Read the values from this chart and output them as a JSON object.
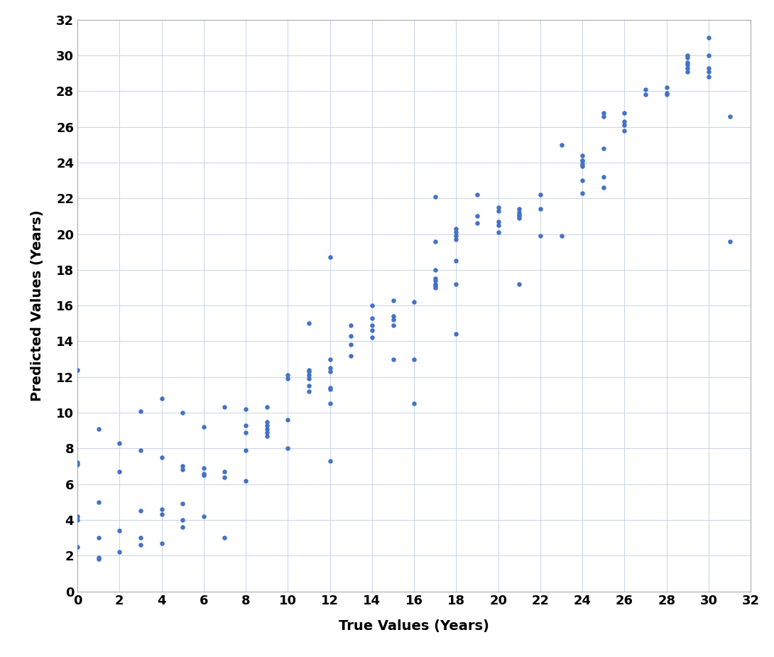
{
  "title": "",
  "xlabel": "True Values (Years)",
  "ylabel": "Predicted Values (Years)",
  "xlim": [
    0,
    32
  ],
  "ylim": [
    0,
    32
  ],
  "xticks": [
    0,
    2,
    4,
    6,
    8,
    10,
    12,
    14,
    16,
    18,
    20,
    22,
    24,
    26,
    28,
    30,
    32
  ],
  "yticks": [
    0,
    2,
    4,
    6,
    8,
    10,
    12,
    14,
    16,
    18,
    20,
    22,
    24,
    26,
    28,
    30,
    32
  ],
  "dot_color": "#4472C4",
  "dot_size": 22,
  "background_color": "#ffffff",
  "grid_color": "#c8d4e8",
  "x": [
    0,
    0,
    0,
    0,
    0,
    0,
    1,
    1,
    1,
    1,
    1,
    2,
    2,
    2,
    2,
    3,
    3,
    3,
    3,
    3,
    4,
    4,
    4,
    4,
    4,
    5,
    5,
    5,
    5,
    5,
    5,
    6,
    6,
    6,
    6,
    6,
    7,
    7,
    7,
    7,
    8,
    8,
    8,
    8,
    8,
    9,
    9,
    9,
    9,
    9,
    9,
    10,
    10,
    10,
    10,
    11,
    11,
    11,
    11,
    11,
    11,
    11,
    12,
    12,
    12,
    12,
    12,
    12,
    12,
    12,
    13,
    13,
    13,
    13,
    14,
    14,
    14,
    14,
    14,
    15,
    15,
    15,
    15,
    15,
    16,
    16,
    16,
    17,
    17,
    17,
    17,
    17,
    17,
    17,
    17,
    18,
    18,
    18,
    18,
    18,
    18,
    18,
    19,
    19,
    19,
    20,
    20,
    20,
    20,
    20,
    21,
    21,
    21,
    21,
    21,
    21,
    22,
    22,
    22,
    23,
    23,
    24,
    24,
    24,
    24,
    24,
    24,
    24,
    25,
    25,
    25,
    25,
    25,
    26,
    26,
    26,
    26,
    27,
    27,
    28,
    28,
    28,
    29,
    29,
    29,
    29,
    29,
    29,
    30,
    30,
    30,
    30,
    30,
    31,
    31
  ],
  "y": [
    2.5,
    4.0,
    4.2,
    7.1,
    7.2,
    12.4,
    1.8,
    1.9,
    3.0,
    5.0,
    9.1,
    2.2,
    3.4,
    6.7,
    8.3,
    2.6,
    3.0,
    4.5,
    7.9,
    10.1,
    2.7,
    4.3,
    4.6,
    7.5,
    10.8,
    3.6,
    4.0,
    4.9,
    6.8,
    7.0,
    10.0,
    4.2,
    6.5,
    6.6,
    6.9,
    9.2,
    3.0,
    6.4,
    6.7,
    10.3,
    6.2,
    7.9,
    8.9,
    9.3,
    10.2,
    8.7,
    8.9,
    9.1,
    9.3,
    9.5,
    10.3,
    8.0,
    9.6,
    11.9,
    12.1,
    11.2,
    11.5,
    11.9,
    12.1,
    12.3,
    12.4,
    15.0,
    7.3,
    10.5,
    11.3,
    11.4,
    12.3,
    12.5,
    13.0,
    18.7,
    13.2,
    13.8,
    14.3,
    14.9,
    14.2,
    14.6,
    14.9,
    15.3,
    16.0,
    13.0,
    14.9,
    15.2,
    15.4,
    16.3,
    10.5,
    13.0,
    16.2,
    17.0,
    17.1,
    17.2,
    17.4,
    17.5,
    18.0,
    19.6,
    22.1,
    14.4,
    17.2,
    18.5,
    19.7,
    19.9,
    20.1,
    20.3,
    20.6,
    21.0,
    22.2,
    20.1,
    20.5,
    20.7,
    21.3,
    21.5,
    17.2,
    20.9,
    21.0,
    21.1,
    21.2,
    21.4,
    19.9,
    21.4,
    22.2,
    19.9,
    25.0,
    22.3,
    23.0,
    23.8,
    23.9,
    24.1,
    24.1,
    24.4,
    22.6,
    23.2,
    24.8,
    26.6,
    26.8,
    25.8,
    26.1,
    26.3,
    26.8,
    27.8,
    28.1,
    27.8,
    27.9,
    28.2,
    29.1,
    29.3,
    29.5,
    29.6,
    29.9,
    30.0,
    28.8,
    29.1,
    29.3,
    30.0,
    31.0,
    26.6,
    19.6
  ]
}
